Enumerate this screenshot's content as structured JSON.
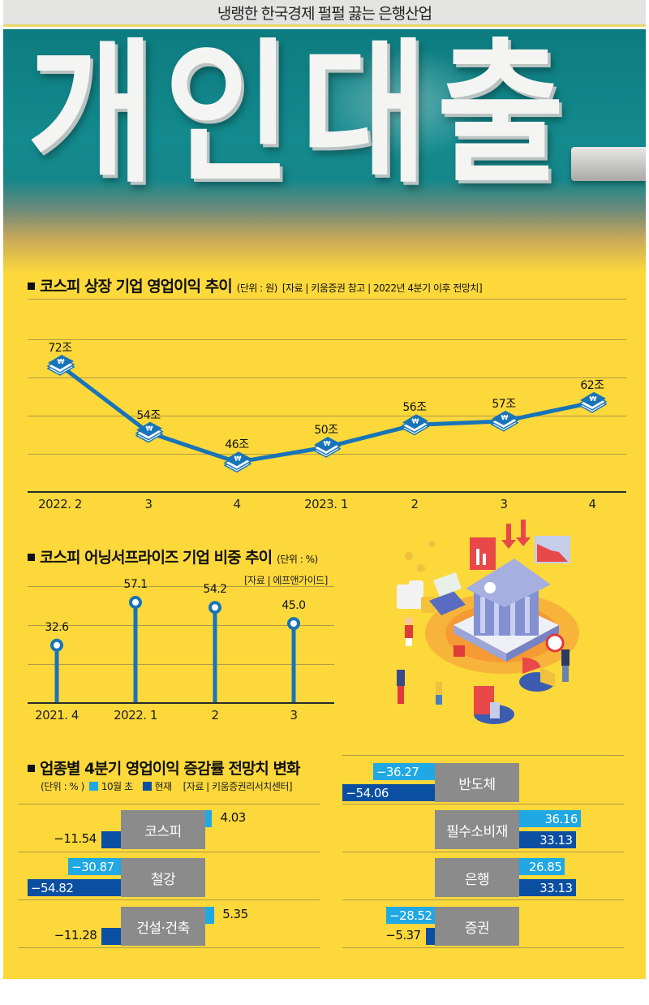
{
  "header": {
    "title": "냉랭한 한국경제 펄펄 끓는 은행산업"
  },
  "hero": {
    "sign_text": "개인대출",
    "description": "teal bank sign photo with white 3D letters"
  },
  "colors": {
    "background": "#fcd83b",
    "line": "#1874b8",
    "light_blue": "#1fa8e4",
    "dark_blue": "#0a4fa2",
    "category_box": "#8b8b8b"
  },
  "section1": {
    "title": "코스피 상장 기업 영업이익 추이",
    "unit": "(단위 : 원)",
    "source": "[자료 | 키움증권 참고 | 2022년 4분기 이후 전망치]"
  },
  "section2": {
    "title": "코스피 어닝서프라이즈 기업 비중 추이",
    "unit": "(단위 : %)",
    "source": "[자료 | 에프앤가이드]"
  },
  "section3": {
    "title": "업종별 4분기 영업이익 증감률 전망치 변화",
    "unit": "(단위 : % )",
    "legend": [
      {
        "label": "10월 초",
        "color": "#1fa8e4"
      },
      {
        "label": "현재",
        "color": "#0a4fa2"
      }
    ],
    "source": "[자료 | 키움증권리서치센터]"
  },
  "illustration": {
    "icon": "bank-building-illustration",
    "description": "isometric bank with falling charts, coins, worried people"
  },
  "chart_data": [
    {
      "type": "line",
      "title": "코스피 상장 기업 영업이익 추이",
      "unit": "조 원",
      "categories": [
        "2022. 2",
        "3",
        "4",
        "2023. 1",
        "2",
        "3",
        "4"
      ],
      "values": [
        72,
        54,
        46,
        50,
        56,
        57,
        62
      ],
      "labels": [
        "72조",
        "54조",
        "46조",
        "50조",
        "56조",
        "57조",
        "62조"
      ],
      "marker": "won-banknote-stack-icon",
      "grid": true,
      "note": "2022년 4분기 이후 전망치"
    },
    {
      "type": "bar",
      "subtype": "lollipop",
      "title": "코스피 어닝서프라이즈 기업 비중 추이",
      "unit": "%",
      "categories": [
        "2021. 4",
        "2022. 1",
        "2",
        "3"
      ],
      "values": [
        32.6,
        57.1,
        54.2,
        45.0
      ],
      "labels": [
        "32.6",
        "57.1",
        "54.2",
        "45.0"
      ],
      "grid": true
    },
    {
      "type": "bar",
      "subtype": "diverging-horizontal",
      "title": "업종별 4분기 영업이익 증감률 전망치 변화",
      "unit": "%",
      "categories": [
        "코스피",
        "철강",
        "건설·건축",
        "반도체",
        "필수소비재",
        "은행",
        "증권"
      ],
      "series": [
        {
          "name": "10월 초",
          "values": [
            4.03,
            -30.87,
            5.35,
            -36.27,
            36.16,
            26.85,
            -28.52
          ],
          "labels": [
            "4.03",
            "−30.87",
            "5.35",
            "−36.27",
            "36.16",
            "26.85",
            "−28.52"
          ]
        },
        {
          "name": "현재",
          "values": [
            -11.54,
            -54.82,
            -11.28,
            -54.06,
            33.13,
            33.13,
            -5.37
          ],
          "labels": [
            "−11.54",
            "−54.82",
            "−11.28",
            "−54.06",
            "33.13",
            "33.13",
            "−5.37"
          ]
        }
      ]
    }
  ]
}
